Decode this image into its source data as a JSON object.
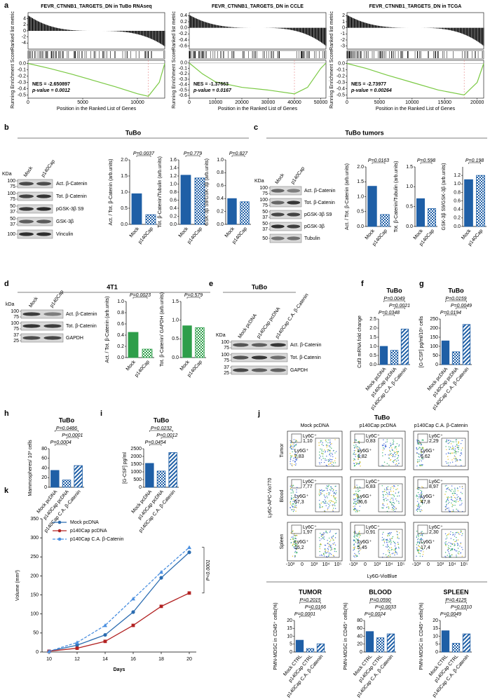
{
  "panel_letters": [
    "a",
    "b",
    "c",
    "d",
    "e",
    "f",
    "g",
    "h",
    "i",
    "j",
    "k"
  ],
  "headers": [
    "TuBo",
    "TuBo tumors",
    "4T1",
    "TuBo",
    "TuBo"
  ],
  "blots": [
    {
      "kda_label": "KDa",
      "lanes": [
        "Mock",
        "p140Cap"
      ],
      "rows": [
        {
          "name": "Act. β-Catenin",
          "kda": [
            "100",
            "75"
          ]
        },
        {
          "name": "Tot. β-Catenin",
          "kda": [
            "100",
            "75"
          ]
        },
        {
          "name": "pGSK-3β S9",
          "kda": [
            "50",
            "37"
          ]
        },
        {
          "name": "GSK-3β",
          "kda": [
            "50",
            "37"
          ]
        },
        {
          "name": "Vinculin",
          "kda": [
            "100"
          ]
        }
      ]
    },
    {
      "kda_label": "KDa",
      "lanes": [
        "Mock",
        "p140Cap"
      ],
      "rows": [
        {
          "name": "Act. β-Catenin",
          "kda": [
            "100",
            "75"
          ]
        },
        {
          "name": "Tot. β-Catenin",
          "kda": [
            "100",
            "75"
          ]
        },
        {
          "name": "pGSK-3β S9",
          "kda": [
            "50",
            "37"
          ]
        },
        {
          "name": "pGSK-3β",
          "kda": [
            "50",
            "37"
          ]
        },
        {
          "name": "Tubulin",
          "kda": [
            "50"
          ]
        }
      ]
    },
    {
      "kda_label": "kDa",
      "lanes": [
        "Mock",
        "p140Cap"
      ],
      "rows": [
        {
          "name": "Act. β-Catenin",
          "kda": [
            "100",
            "75"
          ]
        },
        {
          "name": "Tot. β-Catenin",
          "kda": [
            "100",
            "75"
          ]
        },
        {
          "name": "GAPDH",
          "kda": [
            "37",
            "25"
          ]
        }
      ]
    },
    {
      "kda_label": "KDa",
      "lanes": [
        "Mock pcDNA",
        "p140Cap pcDNA",
        "p140Cap C.A. β-Catenin"
      ],
      "rows": [
        {
          "name": "Act. β-Catenin",
          "kda": [
            "100",
            "75"
          ]
        },
        {
          "name": "Tot. β-Catenin",
          "kda": [
            "100",
            "75"
          ]
        },
        {
          "name": "GAPDH",
          "kda": [
            "37",
            "25"
          ]
        }
      ]
    }
  ],
  "flow": {
    "columns": [
      "Mock pcDNA",
      "p140Cap pcDNA",
      "p140Cap C.A. β-Catenin"
    ],
    "rows": [
      "Tumor",
      "Blood",
      "Spleen"
    ],
    "ylabel": "Ly6C-APC-Vio770",
    "xlabel": "Ly6G-VioBlue",
    "gate_c": "Ly6C⁺",
    "gate_g": "Ly6G⁺",
    "ticks": [
      "-10³",
      "0",
      "10³",
      "10⁴",
      "10⁵"
    ],
    "cells": [
      [
        [
          "1,10",
          "7,83"
        ],
        [
          "0,83",
          "1,82"
        ],
        [
          "2,29",
          "6,62"
        ]
      ],
      [
        [
          "7,77",
          "57,3"
        ],
        [
          "6,83",
          "36,6"
        ],
        [
          "8,97",
          "47,8"
        ]
      ],
      [
        [
          "1,97",
          "15,2"
        ],
        [
          "0,91",
          "5,45"
        ],
        [
          "2,30",
          "17,4"
        ]
      ]
    ]
  },
  "chart_data": [
    {
      "type": "gsea",
      "title": "FEVR_CTNNB1_TARGETS_DN in TuBo RNAseq",
      "nes": "NES = -2.650897",
      "pvalue": "p-value = 0.0012",
      "metric_label": "Ranked list metric",
      "es_label": "Running Enrichment Score",
      "xlabel": "Position in the Ranked List of Genes",
      "color": "#7ac943",
      "xlim": [
        0,
        12500
      ],
      "xticks": [
        0,
        5000,
        10000
      ],
      "metric_ylim": [
        -6,
        6
      ],
      "metric_yticks": [
        4,
        2,
        0,
        -2,
        -4
      ],
      "es_ylim": [
        -0.55,
        0.05
      ],
      "es_yticks": [
        {
          "value": 0,
          "label": "0.0"
        },
        -0.1,
        -0.2,
        -0.3,
        -0.4,
        -0.5
      ],
      "x": [
        0,
        2000,
        4000,
        6000,
        8000,
        10000,
        11000,
        12000,
        12500
      ],
      "es": [
        0,
        -0.08,
        -0.17,
        -0.27,
        -0.37,
        -0.48,
        -0.52,
        -0.3,
        0
      ]
    },
    {
      "type": "gsea",
      "title": "FEVR_CTNNB1_TARGETS_DN in CCLE",
      "nes": "NES = -1.37663",
      "pvalue": "p-value = 0.0167",
      "metric_label": "Ranked list metric",
      "es_label": "Running Enrichment Score",
      "xlabel": "Position in the Ranked List of Genes",
      "color": "#7ac943",
      "xlim": [
        0,
        52000
      ],
      "xticks": [
        0,
        10000,
        20000,
        30000,
        40000,
        50000
      ],
      "metric_ylim": [
        -0.7,
        0.5
      ],
      "metric_yticks": [
        0.4,
        0.2,
        {
          "value": 0,
          "label": "0.0"
        },
        -0.2,
        -0.4,
        -0.6
      ],
      "es_ylim": [
        -0.65,
        0.05
      ],
      "es_yticks": [
        {
          "value": 0,
          "label": "0.0"
        },
        -0.1,
        -0.2,
        -0.3,
        -0.4,
        -0.5,
        -0.6
      ],
      "x": [
        0,
        5000,
        10000,
        20000,
        30000,
        40000,
        45000,
        50000,
        52000
      ],
      "es": [
        0,
        -0.2,
        -0.35,
        -0.45,
        -0.5,
        -0.57,
        -0.45,
        -0.1,
        0
      ]
    },
    {
      "type": "gsea",
      "title": "FEVR_CTNNB1_TARGETS_DN in TCGA",
      "nes": "NES = -2.73977",
      "pvalue": "p-value = 0.00264",
      "metric_label": "Ranked list metric",
      "es_label": "Running Enrichment Score",
      "xlabel": "Position in the Ranked List of Genes",
      "color": "#7ac943",
      "xlim": [
        0,
        21000
      ],
      "xticks": [
        0,
        5000,
        10000,
        15000,
        20000
      ],
      "metric_ylim": [
        -3.5,
        2.5
      ],
      "metric_yticks": [
        2,
        1,
        0,
        -1,
        -2,
        -3
      ],
      "es_ylim": [
        -0.55,
        0.05
      ],
      "es_yticks": [
        {
          "value": 0,
          "label": "0.0"
        },
        -0.1,
        -0.2,
        -0.3,
        -0.4,
        -0.5
      ],
      "x": [
        0,
        3000,
        6000,
        10000,
        14000,
        18000,
        20000,
        21000
      ],
      "es": [
        0,
        -0.08,
        -0.18,
        -0.3,
        -0.42,
        -0.5,
        -0.3,
        0
      ]
    },
    {
      "type": "bar",
      "ylabel": "Act. / Tot. β-Catenin (arb.units)",
      "categories": [
        "Mock",
        "p140Cap"
      ],
      "values": [
        0.95,
        0.3
      ],
      "color": "#1f5fa6",
      "ylim": [
        0,
        2
      ],
      "yticks": [
        {
          "value": 0,
          "label": "0.0"
        },
        0.5,
        {
          "value": 1,
          "label": "1.0"
        },
        1.5,
        {
          "value": 2,
          "label": "2.0"
        }
      ],
      "pvalues": [
        "P=0.0037"
      ]
    },
    {
      "type": "bar",
      "ylabel": "Tot. β-Catenin/Tubulin (arb.units)",
      "categories": [
        "Mock",
        "p140Cap"
      ],
      "values": [
        1.22,
        1.15
      ],
      "color": "#1f5fa6",
      "ylim": [
        0,
        1.6
      ],
      "yticks": [
        {
          "value": 0,
          "label": "0.0"
        },
        0.2,
        0.4,
        0.6,
        0.8,
        {
          "value": 1,
          "label": "1.0"
        },
        1.2,
        1.4,
        1.6
      ],
      "pvalues": [
        "P=0.779"
      ]
    },
    {
      "type": "bar",
      "ylabel": "GSK-3β S9/GSK-3β (arb.units)",
      "categories": [
        "Mock",
        "p140Cap"
      ],
      "values": [
        0.4,
        0.35
      ],
      "color": "#1f5fa6",
      "ylim": [
        0,
        1
      ],
      "yticks": [
        {
          "value": 0,
          "label": "0.0"
        },
        0.2,
        0.4,
        0.6,
        0.8,
        {
          "value": 1,
          "label": "1.0"
        }
      ],
      "pvalues": [
        "P=0.827"
      ]
    },
    {
      "type": "bar",
      "ylabel": "Act. / Tot. β-Catenin (arb.units)",
      "categories": [
        "Mock",
        "p140Cap"
      ],
      "values": [
        1.35,
        0.4
      ],
      "color": "#1f5fa6",
      "ylim": [
        0,
        2
      ],
      "yticks": [
        {
          "value": 0,
          "label": "0.0"
        },
        0.5,
        {
          "value": 1,
          "label": "1.0"
        },
        1.5,
        {
          "value": 2,
          "label": "2.0"
        }
      ],
      "pvalues": [
        "P=0.0163"
      ]
    },
    {
      "type": "bar",
      "ylabel": "Tot. β-Catenin/Tubulin (arb.units)",
      "categories": [
        "Mock",
        "p140Cap"
      ],
      "values": [
        0.7,
        0.45
      ],
      "color": "#1f5fa6",
      "ylim": [
        0,
        1.5
      ],
      "yticks": [
        {
          "value": 0,
          "label": "0.0"
        },
        0.5,
        {
          "value": 1,
          "label": "1.0"
        },
        1.5
      ],
      "pvalues": [
        "P=0.598"
      ]
    },
    {
      "type": "bar",
      "ylabel": "GSK-3β S9/GSK-3β (arb.units)",
      "categories": [
        "Mock",
        "p140Cap"
      ],
      "values": [
        1.1,
        1.2
      ],
      "color": "#1f5fa6",
      "ylim": [
        0,
        1.4
      ],
      "yticks": [
        {
          "value": 0,
          "label": "0.0"
        },
        0.2,
        0.4,
        0.6,
        0.8,
        {
          "value": 1,
          "label": "1.0"
        },
        1.2
      ],
      "pvalues": [
        "P=0.198"
      ]
    },
    {
      "type": "bar",
      "ylabel": "Act. / Tot. β-Catenin (arb.units)",
      "categories": [
        "Mock",
        "p140Cap"
      ],
      "values": [
        0.45,
        0.15
      ],
      "color": "#2e9e4a",
      "ylim": [
        0,
        1
      ],
      "yticks": [
        {
          "value": 0,
          "label": "0.0"
        },
        0.2,
        0.4,
        0.6,
        0.8,
        {
          "value": 1,
          "label": "1.0"
        }
      ],
      "pvalues": [
        "P=0.0023"
      ]
    },
    {
      "type": "bar",
      "ylabel": "Tot. β-Catenin/ GAPDH (arb.units)",
      "categories": [
        "Mock",
        "p140Cap"
      ],
      "values": [
        0.85,
        0.8
      ],
      "color": "#2e9e4a",
      "ylim": [
        0,
        1.5
      ],
      "yticks": [
        {
          "value": 0,
          "label": "0.0"
        },
        0.5,
        {
          "value": 1,
          "label": "1.0"
        },
        1.5
      ],
      "pvalues": [
        "P=0.579"
      ]
    },
    {
      "type": "bar",
      "title": "TuBo",
      "ylabel": "Csf3 mRNA fold change",
      "categories": [
        "Mock pcDNA",
        "p140Cap pcDNA",
        "p140Cap C.A. β-Catenin"
      ],
      "values": [
        1.0,
        0.78,
        1.95
      ],
      "color": "#1f5fa6",
      "ylim": [
        0,
        2.5
      ],
      "yticks": [
        {
          "value": 0,
          "label": "0.0"
        },
        0.5,
        {
          "value": 1,
          "label": "1.0"
        },
        1.5,
        {
          "value": 2,
          "label": "2.0"
        },
        2.5
      ],
      "pvalues": [
        "P=0.0049",
        "P=0.0021",
        "P=0.0348"
      ]
    },
    {
      "type": "bar",
      "title": "TuBo",
      "ylabel": "[G-CSF] pg/ml/10⁶ cells",
      "categories": [
        "Mock pcDNA",
        "p140Cap pcDNA",
        "p140Cap C.A. β-Catenin"
      ],
      "values": [
        130,
        70,
        220
      ],
      "color": "#1f5fa6",
      "ylim": [
        0,
        250
      ],
      "yticks": [
        0,
        50,
        100,
        150,
        200,
        250
      ],
      "pvalues": [
        "P=0.0159",
        "P=0.0049",
        "P=0.0194"
      ]
    },
    {
      "type": "bar",
      "title": "TuBo",
      "ylabel": "Mammospheres/ 10³ cells",
      "categories": [
        "Mock pcDNA",
        "p140Cap pcDNA",
        "p140Cap C.A. β-Catenin"
      ],
      "values": [
        35,
        15,
        45
      ],
      "color": "#1f5fa6",
      "ylim": [
        0,
        80
      ],
      "yticks": [
        0,
        20,
        40,
        60,
        80
      ],
      "pvalues": [
        "P=0.0486",
        "P<0.0001",
        "P=0.0004"
      ]
    },
    {
      "type": "bar",
      "title": "TuBo",
      "ylabel": "[G-CSF] pg/ml",
      "categories": [
        "Mock pcDNA",
        "p140Cap pcDNA",
        "p140Cap C.A. β-Catenin"
      ],
      "values": [
        1550,
        1050,
        2250
      ],
      "color": "#1f5fa6",
      "ylim": [
        0,
        2500
      ],
      "yticks": [
        0,
        500,
        1000,
        1500,
        2000,
        2500
      ],
      "pvalues": [
        "P=0.0232",
        "P=0.0012",
        "P=0.0454"
      ]
    },
    {
      "type": "bar",
      "title": "TUMOR",
      "ylabel": "PMN-MDSC in CD45⁺ cells(%)",
      "categories": [
        "Mock CTRL",
        "p140Cap CTRL",
        "p140Cap C.A. β-Catenin"
      ],
      "values": [
        7.5,
        2.2,
        5.2
      ],
      "color": "#1f5fa6",
      "ylim": [
        0,
        20
      ],
      "yticks": [
        0,
        5,
        10,
        15,
        20
      ],
      "pvalues": [
        "P=0.2015",
        "P=0.0166",
        "P=0.0001"
      ]
    },
    {
      "type": "bar",
      "title": "BLOOD",
      "ylabel": "PMN-MDSC in CD45⁺ cells(%)",
      "categories": [
        "Mock CTRL",
        "p140Cap CTRL",
        "p140Cap C.A. β-Catenin"
      ],
      "values": [
        52,
        36,
        46
      ],
      "color": "#1f5fa6",
      "ylim": [
        0,
        80
      ],
      "yticks": [
        0,
        20,
        40,
        60,
        80
      ],
      "pvalues": [
        "P=0.0590",
        "P=0.0033",
        "P=0.0024"
      ]
    },
    {
      "type": "bar",
      "title": "SPLEEN",
      "ylabel": "PMN-MDSC in CD45⁺ cells(%)",
      "categories": [
        "Mock CTRL",
        "p140Cap CTRL",
        "p140Cap C.A. β-Catenin"
      ],
      "values": [
        13.5,
        5.5,
        11.5
      ],
      "color": "#1f5fa6",
      "ylim": [
        0,
        20
      ],
      "yticks": [
        0,
        5,
        10,
        15,
        20
      ],
      "pvalues": [
        "P=0.4125",
        "P=0.0310",
        "P=0.0049"
      ]
    },
    {
      "type": "line",
      "xlabel": "Days",
      "ylabel": "Volume (mm³)",
      "pvalue": "P<0.0001",
      "x": [
        10,
        12,
        14,
        16,
        18,
        20
      ],
      "xlim": [
        9.5,
        20.5
      ],
      "xticks": [
        10,
        12,
        14,
        16,
        18,
        20
      ],
      "ylim": [
        0,
        350
      ],
      "yticks": [
        0,
        50,
        100,
        150,
        200,
        250,
        300,
        350
      ],
      "series": [
        {
          "name": "Mock pcDNA",
          "color": "#2b6cb0",
          "values": [
            2,
            18,
            45,
            105,
            195,
            262
          ]
        },
        {
          "name": "p140Cap pcDNA",
          "color": "#b22222",
          "values": [
            2,
            10,
            28,
            70,
            120,
            155
          ]
        },
        {
          "name": "p140Cap C.A. β-Catenin",
          "color": "#4a8fe0",
          "values": [
            2,
            25,
            70,
            140,
            210,
            275
          ]
        }
      ]
    }
  ]
}
